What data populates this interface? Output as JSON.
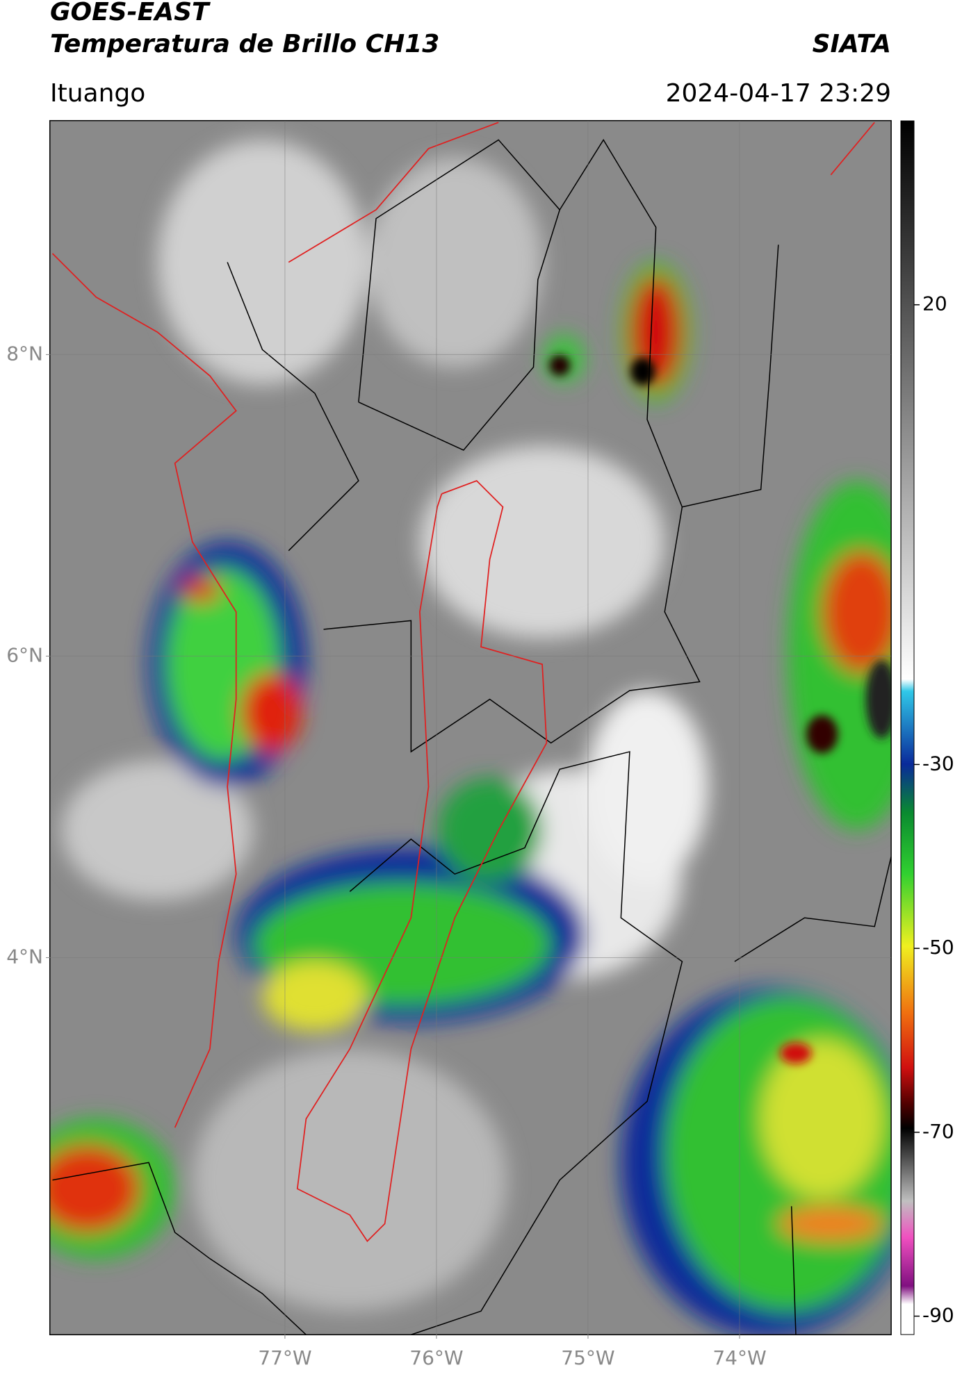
{
  "header": {
    "title": "GOES-EAST",
    "subtitle": "Temperatura de Brillo CH13",
    "brand": "SIATA",
    "location": "Ituango",
    "datetime": "2024-04-17 23:29"
  },
  "map": {
    "xlim": [
      -78.55,
      -73.0
    ],
    "ylim": [
      1.5,
      9.55
    ],
    "xticks": [
      {
        "value": -77,
        "label": "77°W"
      },
      {
        "value": -76,
        "label": "76°W"
      },
      {
        "value": -75,
        "label": "75°W"
      },
      {
        "value": -74,
        "label": "74°W"
      }
    ],
    "yticks": [
      {
        "value": 8,
        "label": "8°N"
      },
      {
        "value": 6,
        "label": "6°N"
      },
      {
        "value": 4,
        "label": "4°N"
      }
    ]
  },
  "colorbar": {
    "clim": [
      -92,
      40
    ],
    "ticks": [
      20,
      -30,
      -50,
      -70,
      -90
    ]
  }
}
